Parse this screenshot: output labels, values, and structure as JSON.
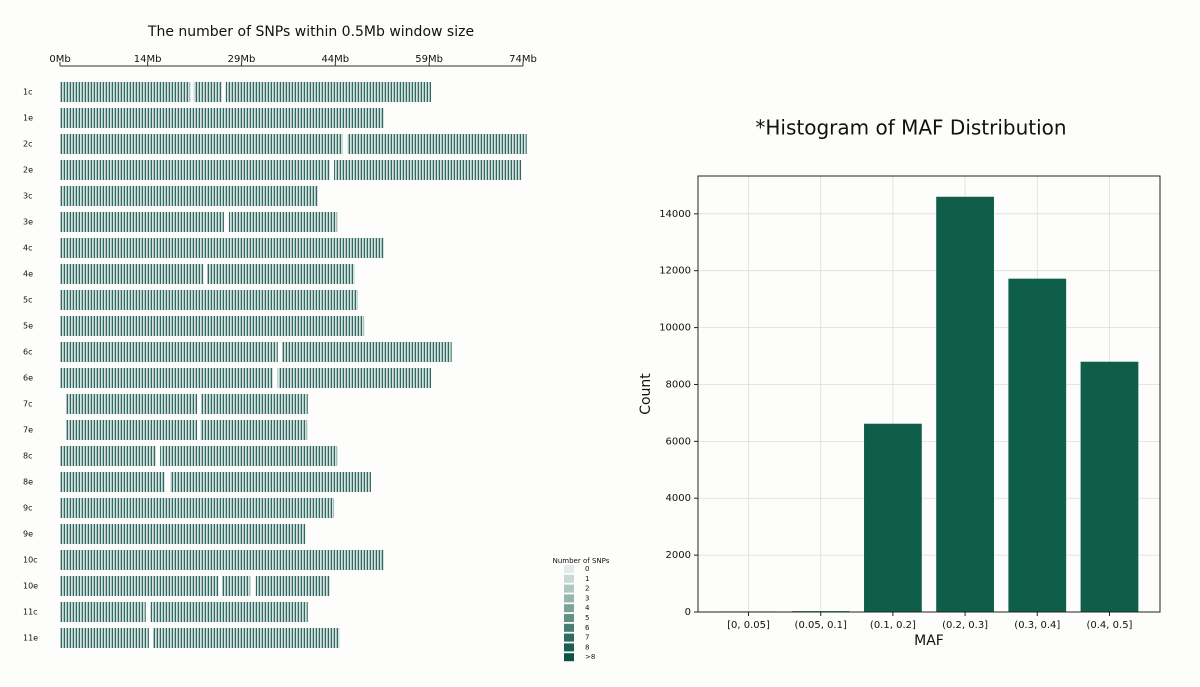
{
  "chart_data": [
    {
      "type": "ideogram",
      "title": "The number of SNPs within 0.5Mb window size",
      "categories": [
        "1c",
        "1e",
        "2c",
        "2e",
        "3c",
        "3e",
        "4c",
        "4e",
        "5c",
        "5e",
        "6c",
        "6e",
        "7c",
        "7e",
        "8c",
        "8e",
        "9c",
        "9e",
        "10c",
        "10e",
        "11c",
        "11e"
      ],
      "starts": [
        0,
        0,
        0,
        0,
        0,
        0,
        0,
        0,
        0,
        0,
        0,
        0,
        1.0,
        1.0,
        0,
        0,
        0,
        0,
        0,
        0,
        0,
        0
      ],
      "ends": [
        59.3,
        51.8,
        74.6,
        73.7,
        41.2,
        44.3,
        51.8,
        47.1,
        47.6,
        48.6,
        62.6,
        59.3,
        39.6,
        39.5,
        44.3,
        49.7,
        43.8,
        39.2,
        51.8,
        43.2,
        39.6,
        44.7
      ],
      "gaps": [
        [
          [
            20.8,
            21.4
          ],
          [
            25.9,
            26.5
          ]
        ],
        [],
        [
          [
            45.2,
            45.9
          ]
        ],
        [
          [
            43.2,
            43.8
          ]
        ],
        [],
        [
          [
            26.2,
            27.0
          ]
        ],
        [],
        [
          [
            22.9,
            23.5
          ]
        ],
        [],
        [],
        [
          [
            34.8,
            35.5
          ]
        ],
        [
          [
            34.0,
            34.8
          ]
        ],
        [
          [
            21.9,
            22.5
          ]
        ],
        [
          [
            21.9,
            22.4
          ]
        ],
        [
          [
            15.3,
            16.0
          ]
        ],
        [
          [
            16.8,
            17.6
          ]
        ],
        [],
        [],
        [],
        [
          [
            25.3,
            25.9
          ],
          [
            30.4,
            31.3
          ]
        ],
        [
          [
            13.7,
            14.5
          ]
        ],
        [
          [
            14.2,
            14.9
          ]
        ]
      ],
      "color": "#2f6a62",
      "xlim": [
        0,
        74
      ],
      "xticks": [
        {
          "value": 0,
          "label": "0Mb"
        },
        {
          "value": 14,
          "label": "14Mb"
        },
        {
          "value": 29,
          "label": "29Mb"
        },
        {
          "value": 44,
          "label": "44Mb"
        },
        {
          "value": 59,
          "label": "59Mb"
        },
        {
          "value": 74,
          "label": "74Mb"
        }
      ],
      "legend": {
        "title": "Number of SNPs",
        "labels": [
          "0",
          "1",
          "2",
          "3",
          "4",
          "5",
          "6",
          "7",
          "8",
          ">8"
        ],
        "colors": [
          "#e3ebe9",
          "#c9d9d5",
          "#afc7c1",
          "#95b5ad",
          "#7ba399",
          "#619185",
          "#477f71",
          "#2d6d5d",
          "#1a5f4d",
          "#0b5444"
        ]
      }
    },
    {
      "type": "bar",
      "title": "*Histogram of MAF Distribution",
      "x_label": "MAF",
      "y_label": "Count",
      "categories": [
        "[0, 0.05]",
        "(0.05, 0.1]",
        "(0.1, 0.2]",
        "(0.2, 0.3]",
        "(0.3, 0.4]",
        "(0.4, 0.5]"
      ],
      "values": [
        20,
        30,
        6620,
        14600,
        11720,
        8800
      ],
      "color": "#0e5e4a",
      "ylim": [
        0,
        15330
      ],
      "yticks": [
        0,
        2000,
        4000,
        6000,
        8000,
        10000,
        12000,
        14000
      ],
      "grid": true
    }
  ]
}
